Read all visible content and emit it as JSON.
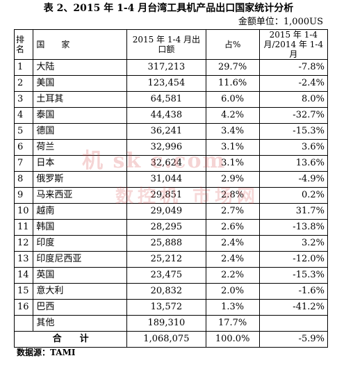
{
  "title": "表 2、2015 年 1-4 月台湾工具机产品出口国家统计分析",
  "unit": "金额单位：1,000US",
  "header": {
    "rank": "排名",
    "country": "国　　家",
    "value": "2015 年 1-4 月出口额",
    "share": "占%",
    "change": "2015 年 1-4 月/2014 年 1-4 月"
  },
  "rows": [
    {
      "rank": "1",
      "country": "大陆",
      "value": "317,213",
      "share": "29.7%",
      "change": "-7.8%"
    },
    {
      "rank": "2",
      "country": "美国",
      "value": "123,454",
      "share": "11.6%",
      "change": "-2.4%"
    },
    {
      "rank": "3",
      "country": "土耳其",
      "value": "64,581",
      "share": "6.0%",
      "change": "8.0%"
    },
    {
      "rank": "4",
      "country": "泰国",
      "value": "44,438",
      "share": "4.2%",
      "change": "-32.7%"
    },
    {
      "rank": "5",
      "country": "德国",
      "value": "36,241",
      "share": "3.4%",
      "change": "-15.3%"
    },
    {
      "rank": "6",
      "country": "荷兰",
      "value": "32,996",
      "share": "3.1%",
      "change": "3.6%"
    },
    {
      "rank": "7",
      "country": "日本",
      "value": "32,624",
      "share": "3.1%",
      "change": "13.6%"
    },
    {
      "rank": "8",
      "country": "俄罗斯",
      "value": "31,044",
      "share": "2.9%",
      "change": "-4.9%"
    },
    {
      "rank": "9",
      "country": "马来西亚",
      "value": "29,851",
      "share": "2.8%",
      "change": "0.2%"
    },
    {
      "rank": "10",
      "country": "越南",
      "value": "29,049",
      "share": "2.7%",
      "change": "31.7%"
    },
    {
      "rank": "11",
      "country": "韩国",
      "value": "28,295",
      "share": "2.6%",
      "change": "-13.8%"
    },
    {
      "rank": "12",
      "country": "印度",
      "value": "25,888",
      "share": "2.4%",
      "change": "3.2%"
    },
    {
      "rank": "13",
      "country": "印度尼西亚",
      "value": "25,212",
      "share": "2.4%",
      "change": "-12.0%"
    },
    {
      "rank": "14",
      "country": "英国",
      "value": "23,475",
      "share": "2.2%",
      "change": "-15.3%"
    },
    {
      "rank": "15",
      "country": "意大利",
      "value": "20,832",
      "share": "2.0%",
      "change": "-1.6%"
    },
    {
      "rank": "16",
      "country": "巴西",
      "value": "13,572",
      "share": "1.3%",
      "change": "-41.2%"
    },
    {
      "rank": "",
      "country": "其他",
      "value": "189,310",
      "share": "17.7%",
      "change": ""
    }
  ],
  "total": {
    "label": "合　　计",
    "value": "1,068,075",
    "share": "100.0%",
    "change": "-5.9%"
  },
  "source": "数据源：TAMI",
  "watermark": {
    "line1": "机 sk c.com",
    "line2": "数控机 市场网"
  }
}
